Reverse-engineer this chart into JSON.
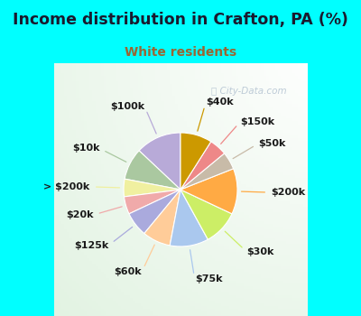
{
  "title": "Income distribution in Crafton, PA (%)",
  "subtitle": "White residents",
  "title_color": "#1a1a2e",
  "subtitle_color": "#996633",
  "bg_top_color": "#00ffff",
  "chart_bg_left": "#c8eed8",
  "chart_bg_right": "#f0f8ff",
  "watermark": "City-Data.com",
  "labels": [
    "$100k",
    "$10k",
    "> $200k",
    "$20k",
    "$125k",
    "$60k",
    "$75k",
    "$30k",
    "$200k",
    "$50k",
    "$150k",
    "$40k"
  ],
  "values": [
    13,
    9,
    5,
    5,
    7,
    8,
    11,
    10,
    13,
    5,
    5,
    9
  ],
  "colors": [
    "#b8aad8",
    "#aac8a0",
    "#f0f0a0",
    "#f0aaaa",
    "#aaaadd",
    "#ffcc99",
    "#aac8ee",
    "#ccee66",
    "#ffaa44",
    "#c8bba8",
    "#ee8888",
    "#cc9900"
  ],
  "startangle": 90,
  "label_fontsize": 8,
  "title_fontsize": 12.5,
  "subtitle_fontsize": 10
}
